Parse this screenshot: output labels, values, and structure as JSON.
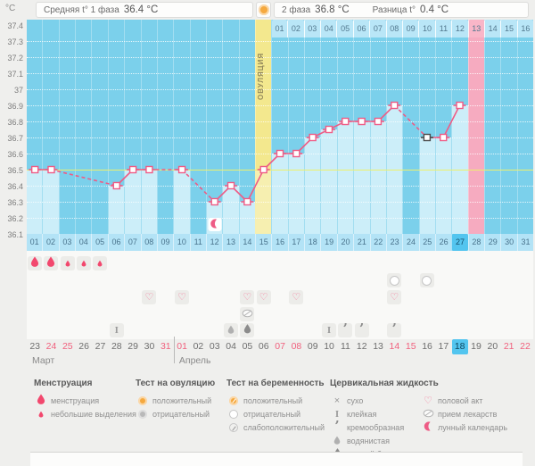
{
  "header": {
    "unit": "°C",
    "phase1_label": "Средняя t° 1 фаза",
    "phase1_value": "36.4 °C",
    "phase2_label": "2 фаза",
    "phase2_value": "36.8 °C",
    "diff_label": "Разница t°",
    "diff_value": "0.4 °C"
  },
  "chart_data": {
    "type": "line",
    "ylabel": "°C",
    "ylim": [
      36.1,
      37.4
    ],
    "y_ticks": [
      "37.4",
      "37.3",
      "37.2",
      "37.1",
      "37",
      "36.9",
      "36.8",
      "36.7",
      "36.6",
      "36.5",
      "36.4",
      "36.3",
      "36.2",
      "36.1"
    ],
    "coverline": 36.5,
    "x_days": 31,
    "points": [
      {
        "day": 1,
        "temp": 36.5
      },
      {
        "day": 2,
        "temp": 36.5
      },
      {
        "day": 6,
        "temp": 36.4
      },
      {
        "day": 7,
        "temp": 36.5
      },
      {
        "day": 8,
        "temp": 36.5
      },
      {
        "day": 10,
        "temp": 36.5
      },
      {
        "day": 12,
        "temp": 36.3
      },
      {
        "day": 13,
        "temp": 36.4
      },
      {
        "day": 14,
        "temp": 36.3
      },
      {
        "day": 15,
        "temp": 36.5
      },
      {
        "day": 16,
        "temp": 36.6
      },
      {
        "day": 17,
        "temp": 36.6
      },
      {
        "day": 18,
        "temp": 36.7
      },
      {
        "day": 19,
        "temp": 36.75
      },
      {
        "day": 20,
        "temp": 36.8
      },
      {
        "day": 21,
        "temp": 36.8
      },
      {
        "day": 22,
        "temp": 36.8
      },
      {
        "day": 23,
        "temp": 36.9
      },
      {
        "day": 25,
        "temp": 36.7,
        "excluded": true
      },
      {
        "day": 26,
        "temp": 36.7
      },
      {
        "day": 27,
        "temp": 36.9
      }
    ],
    "ovulation_day": 15,
    "ovulation_label": "ОВУЛЯЦИЯ",
    "period_forecast_day": 28,
    "selected_day": 27,
    "lunar_day": 12,
    "post_ovulation_row": {
      "labels": [
        "01",
        "02",
        "03",
        "04",
        "05",
        "06",
        "07",
        "08",
        "09",
        "10",
        "11",
        "12",
        "13",
        "14",
        "15",
        "16"
      ],
      "highlight": "13"
    }
  },
  "cycle_day_row": {
    "labels": [
      "01",
      "02",
      "03",
      "04",
      "05",
      "06",
      "07",
      "08",
      "09",
      "10",
      "11",
      "12",
      "13",
      "14",
      "15",
      "16",
      "17",
      "18",
      "19",
      "20",
      "21",
      "22",
      "23",
      "24",
      "25",
      "26",
      "27",
      "28",
      "29",
      "30",
      "31"
    ],
    "selected": "27"
  },
  "icons": {
    "menstruation": [
      {
        "day": 1,
        "size": "big"
      },
      {
        "day": 2,
        "size": "big"
      },
      {
        "day": 3,
        "size": "small"
      },
      {
        "day": 4,
        "size": "small"
      },
      {
        "day": 5,
        "size": "small"
      }
    ],
    "pregnancy_tests": [
      {
        "day": 23,
        "result": "negative"
      },
      {
        "day": 25,
        "result": "negative"
      }
    ],
    "intercourse_days": [
      8,
      10,
      14,
      15,
      17,
      23
    ],
    "medication_days": [
      14
    ],
    "cervical_fluid": [
      {
        "day": 6,
        "type": "sticky"
      },
      {
        "day": 13,
        "type": "watery"
      },
      {
        "day": 14,
        "type": "eggwhite"
      },
      {
        "day": 19,
        "type": "sticky"
      },
      {
        "day": 20,
        "type": "creamy"
      },
      {
        "day": 21,
        "type": "creamy"
      },
      {
        "day": 23,
        "type": "creamy"
      }
    ]
  },
  "calendar": {
    "months": [
      {
        "name": "Март",
        "days": [
          {
            "d": "23"
          },
          {
            "d": "24",
            "weekend": true
          },
          {
            "d": "25",
            "weekend": true
          },
          {
            "d": "26"
          },
          {
            "d": "27"
          },
          {
            "d": "28"
          },
          {
            "d": "29"
          },
          {
            "d": "30"
          },
          {
            "d": "31",
            "weekend": true
          }
        ]
      },
      {
        "name": "Апрель",
        "days": [
          {
            "d": "01",
            "weekend": true
          },
          {
            "d": "02"
          },
          {
            "d": "03"
          },
          {
            "d": "04"
          },
          {
            "d": "05"
          },
          {
            "d": "06"
          },
          {
            "d": "07",
            "weekend": true
          },
          {
            "d": "08",
            "weekend": true
          },
          {
            "d": "09"
          },
          {
            "d": "10"
          },
          {
            "d": "11"
          },
          {
            "d": "12"
          },
          {
            "d": "13"
          },
          {
            "d": "14",
            "weekend": true
          },
          {
            "d": "15",
            "weekend": true
          },
          {
            "d": "16"
          },
          {
            "d": "17"
          },
          {
            "d": "18",
            "today": true
          },
          {
            "d": "19"
          },
          {
            "d": "20"
          },
          {
            "d": "21",
            "weekend": true
          },
          {
            "d": "22",
            "weekend": true
          }
        ]
      }
    ]
  },
  "legend": {
    "groups": [
      {
        "title": "Менструация",
        "items": [
          {
            "icon": "drop-big",
            "label": "менструация"
          },
          {
            "icon": "drop-small",
            "label": "небольшие выделения"
          }
        ]
      },
      {
        "title": "Тест на овуляцию",
        "items": [
          {
            "icon": "test-positive",
            "label": "положительный"
          },
          {
            "icon": "test-negative-gray",
            "label": "отрицательный"
          }
        ]
      },
      {
        "title": "Тест на беременность",
        "items": [
          {
            "icon": "preg-positive",
            "label": "положительный"
          },
          {
            "icon": "preg-negative",
            "label": "отрицательный"
          },
          {
            "icon": "preg-weak",
            "label": "слабоположительный"
          }
        ]
      },
      {
        "title": "Цервикальная жидкость",
        "items": [
          {
            "icon": "dry",
            "label": "сухо"
          },
          {
            "icon": "sticky",
            "label": "клейкая"
          },
          {
            "icon": "creamy",
            "label": "кремообразная"
          },
          {
            "icon": "watery",
            "label": "водянистая"
          },
          {
            "icon": "eggwhite",
            "label": "яичный белок"
          }
        ]
      },
      {
        "title": "",
        "items": [
          {
            "icon": "heart",
            "label": "половой акт"
          },
          {
            "icon": "pill",
            "label": "прием лекарств"
          },
          {
            "icon": "moon",
            "label": "лунный календарь"
          }
        ]
      }
    ]
  },
  "colors": {
    "chart_blue": "#7bd0eb",
    "chart_blue_light": "#cceef9",
    "ovulation_yellow": "#f3e88e",
    "period_pink": "#f6abc0",
    "coverline": "#edf06d",
    "curve_pink": "#ee5c86",
    "excluded_gray": "#4a4a4a",
    "accent_blue": "#53c5ef",
    "weekend_red": "#f0617e",
    "orange_test": "#f5a93f",
    "drop_red": "#f2486e",
    "heart_pink": "#f37a9b",
    "gray_icon": "#9a9a9a"
  }
}
